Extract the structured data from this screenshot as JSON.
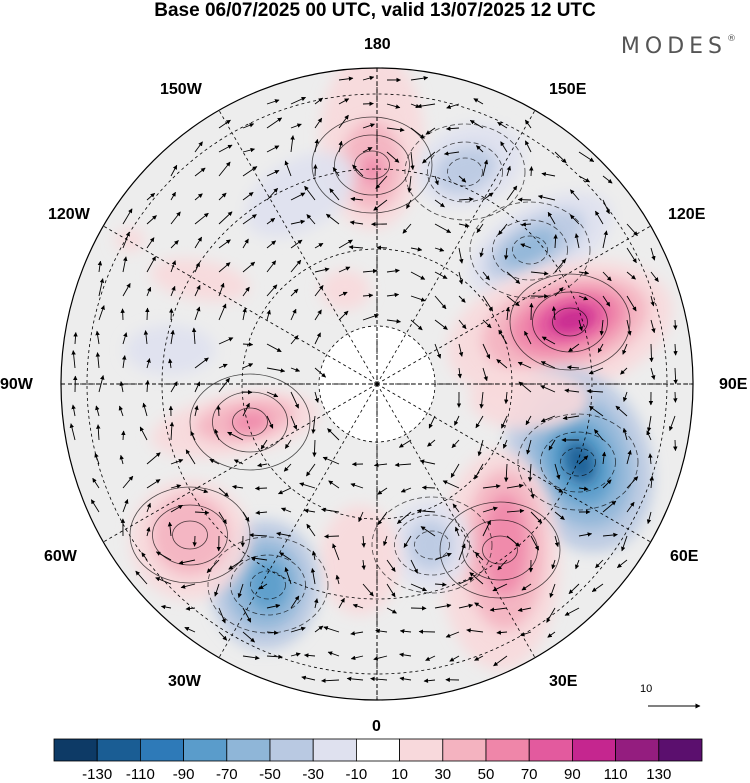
{
  "title": "Base 06/07/2025 00 UTC, valid 13/07/2025 12 UTC",
  "brand": {
    "name": "MODES",
    "mark": "®"
  },
  "longitude_labels": {
    "lon_180": "180",
    "lon_150E": "150E",
    "lon_120E": "120E",
    "lon_90E": "90E",
    "lon_60E": "60E",
    "lon_30E": "30E",
    "lon_0": "0",
    "lon_30W": "30W",
    "lon_60W": "60W",
    "lon_90W": "90W",
    "lon_120W": "120W",
    "lon_150W": "150W"
  },
  "reference_vector": {
    "value": "10"
  },
  "colorbar": {
    "colors": [
      "#0d3a66",
      "#1a5d94",
      "#2e7ab8",
      "#5a9ccb",
      "#8fb6d8",
      "#b9c9e2",
      "#dfe1ef",
      "#ffffff",
      "#f8d9dc",
      "#f4b3c0",
      "#ef86a9",
      "#e35a9e",
      "#c5268f",
      "#941d7f",
      "#5b0f6e"
    ],
    "tick_labels": [
      "-130",
      "-110",
      "-90",
      "-70",
      "-50",
      "-30",
      "-10",
      "10",
      "30",
      "50",
      "70",
      "90",
      "110",
      "130"
    ]
  }
}
